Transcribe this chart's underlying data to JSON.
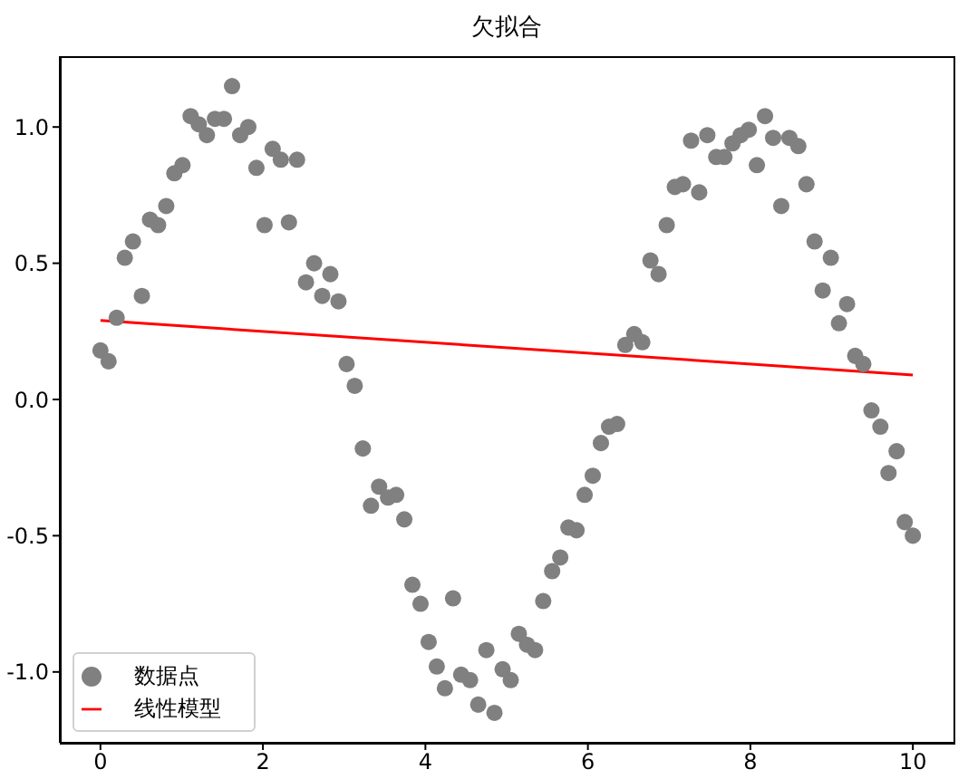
{
  "chart_data": {
    "type": "scatter",
    "title": "欠拟合",
    "xlim": [
      -0.5,
      10.5
    ],
    "xticks": [
      0,
      2,
      4,
      6,
      8,
      10
    ],
    "ylim": [
      -1.26,
      1.26
    ],
    "yticks": [
      {
        "value": -1,
        "label": "-1.0"
      },
      {
        "value": -0.5,
        "label": "-0.5"
      },
      {
        "value": 0,
        "label": "0.0"
      },
      {
        "value": 0.5,
        "label": "0.5"
      },
      {
        "value": 1,
        "label": "1.0"
      }
    ],
    "legend": "bottom left",
    "marker": "circle",
    "series": [
      {
        "name": "数据点",
        "color": "#808080",
        "x": [
          0,
          0.1,
          0.2,
          0.3,
          0.4,
          0.51,
          0.61,
          0.71,
          0.81,
          0.91,
          1.01,
          1.11,
          1.21,
          1.31,
          1.41,
          1.52,
          1.62,
          1.72,
          1.82,
          1.92,
          2.02,
          2.12,
          2.22,
          2.32,
          2.42,
          2.53,
          2.63,
          2.73,
          2.83,
          2.93,
          3.03,
          3.13,
          3.23,
          3.33,
          3.43,
          3.54,
          3.64,
          3.74,
          3.84,
          3.94,
          4.04,
          4.14,
          4.24,
          4.34,
          4.44,
          4.55,
          4.65,
          4.75,
          4.85,
          4.95,
          5.05,
          5.15,
          5.25,
          5.35,
          5.45,
          5.56,
          5.66,
          5.76,
          5.86,
          5.96,
          6.06,
          6.16,
          6.26,
          6.36,
          6.46,
          6.57,
          6.67,
          6.77,
          6.87,
          6.97,
          7.07,
          7.17,
          7.27,
          7.37,
          7.47,
          7.58,
          7.68,
          7.78,
          7.88,
          7.98,
          8.08,
          8.18,
          8.28,
          8.38,
          8.48,
          8.59,
          8.69,
          8.79,
          8.89,
          8.99,
          9.09,
          9.19,
          9.29,
          9.39,
          9.49,
          9.6,
          9.7,
          9.8,
          9.9,
          10
        ],
        "values": [
          0.18,
          0.14,
          0.3,
          0.52,
          0.58,
          0.38,
          0.66,
          0.64,
          0.71,
          0.83,
          0.86,
          1.04,
          1.01,
          0.97,
          1.03,
          1.03,
          1.15,
          0.97,
          1.0,
          0.85,
          0.64,
          0.92,
          0.88,
          0.65,
          0.88,
          0.43,
          0.5,
          0.38,
          0.46,
          0.36,
          0.13,
          0.05,
          -0.18,
          -0.39,
          -0.32,
          -0.36,
          -0.35,
          -0.44,
          -0.68,
          -0.75,
          -0.89,
          -0.98,
          -1.06,
          -0.73,
          -1.01,
          -1.03,
          -1.12,
          -0.92,
          -1.15,
          -0.99,
          -1.03,
          -0.86,
          -0.9,
          -0.92,
          -0.74,
          -0.63,
          -0.58,
          -0.47,
          -0.48,
          -0.35,
          -0.28,
          -0.16,
          -0.1,
          -0.09,
          0.2,
          0.24,
          0.21,
          0.51,
          0.46,
          0.64,
          0.78,
          0.79,
          0.95,
          0.76,
          0.97,
          0.89,
          0.89,
          0.94,
          0.97,
          0.99,
          0.86,
          1.04,
          0.96,
          0.71,
          0.96,
          0.93,
          0.79,
          0.58,
          0.4,
          0.52,
          0.28,
          0.35,
          0.16,
          0.13,
          -0.04,
          -0.1,
          -0.27,
          -0.19,
          -0.45,
          -0.5
        ]
      },
      {
        "name": "线性模型",
        "type": "line",
        "color": "#ff0000",
        "marker": "none",
        "x": [
          0,
          10
        ],
        "values": [
          0.29,
          0.09
        ]
      }
    ]
  }
}
